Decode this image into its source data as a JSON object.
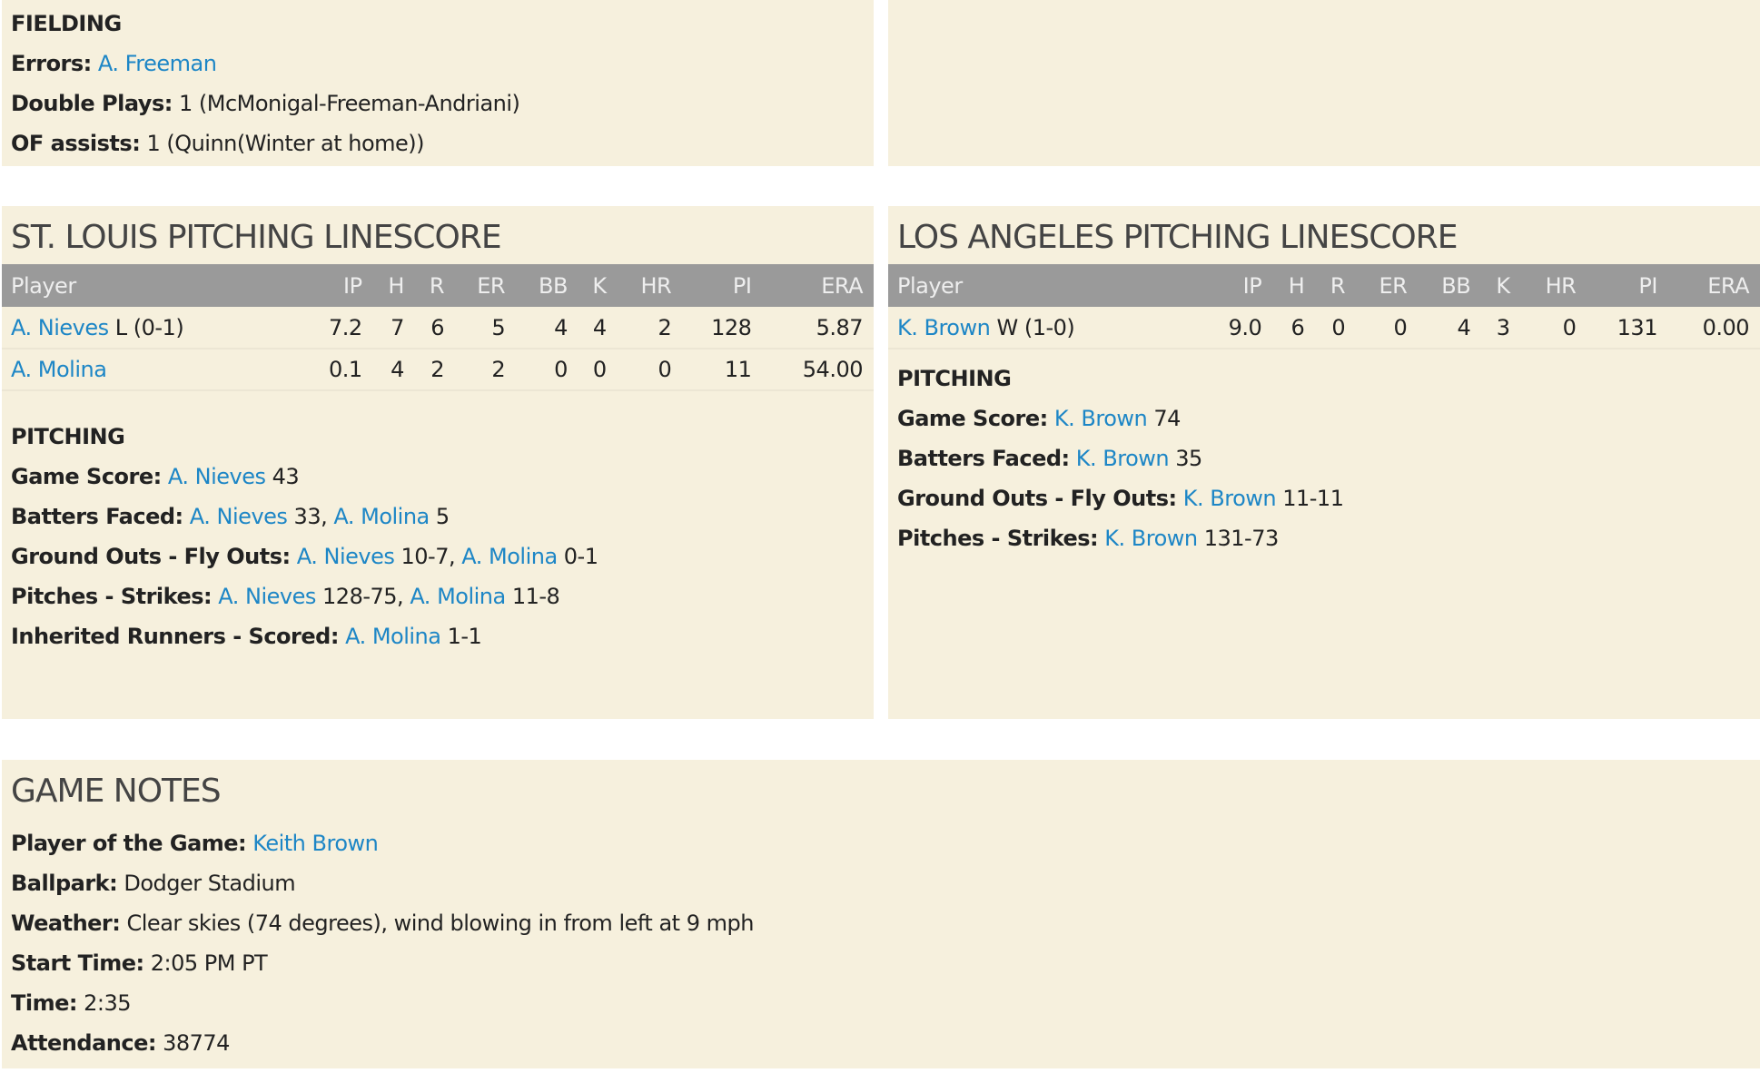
{
  "fielding": {
    "heading": "FIELDING",
    "lines": [
      {
        "label": "Errors:",
        "parts": [
          {
            "t": "A. Freeman",
            "link": true
          }
        ]
      },
      {
        "label": "Double Plays:",
        "parts": [
          {
            "t": "1 (McMonigal-Freeman-Andriani)"
          }
        ]
      },
      {
        "label": "OF assists:",
        "parts": [
          {
            "t": "1 (Quinn(Winter at home))"
          }
        ]
      }
    ]
  },
  "columns": [
    "Player",
    "IP",
    "H",
    "R",
    "ER",
    "BB",
    "K",
    "HR",
    "PI",
    "ERA"
  ],
  "stl": {
    "title": "ST. LOUIS PITCHING LINESCORE",
    "rows": [
      {
        "name": "A. Nieves",
        "dec": "L (0-1)",
        "stats": [
          "7.2",
          "7",
          "6",
          "5",
          "4",
          "4",
          "2",
          "128",
          "5.87"
        ]
      },
      {
        "name": "A. Molina",
        "dec": "",
        "stats": [
          "0.1",
          "4",
          "2",
          "2",
          "0",
          "0",
          "0",
          "11",
          "54.00"
        ]
      }
    ],
    "heading": "PITCHING",
    "lines": [
      {
        "label": "Game Score:",
        "parts": [
          {
            "t": "A. Nieves",
            "link": true
          },
          {
            "t": " 43"
          }
        ]
      },
      {
        "label": "Batters Faced:",
        "parts": [
          {
            "t": "A. Nieves",
            "link": true
          },
          {
            "t": " 33, "
          },
          {
            "t": "A. Molina",
            "link": true
          },
          {
            "t": " 5"
          }
        ]
      },
      {
        "label": "Ground Outs - Fly Outs:",
        "parts": [
          {
            "t": "A. Nieves",
            "link": true
          },
          {
            "t": " 10-7, "
          },
          {
            "t": "A. Molina",
            "link": true
          },
          {
            "t": " 0-1"
          }
        ]
      },
      {
        "label": "Pitches - Strikes:",
        "parts": [
          {
            "t": "A. Nieves",
            "link": true
          },
          {
            "t": " 128-75, "
          },
          {
            "t": "A. Molina",
            "link": true
          },
          {
            "t": " 11-8"
          }
        ]
      },
      {
        "label": "Inherited Runners - Scored:",
        "parts": [
          {
            "t": "A. Molina",
            "link": true
          },
          {
            "t": " 1-1"
          }
        ]
      }
    ]
  },
  "la": {
    "title": "LOS ANGELES PITCHING LINESCORE",
    "rows": [
      {
        "name": "K. Brown",
        "dec": "W (1-0)",
        "stats": [
          "9.0",
          "6",
          "0",
          "0",
          "4",
          "3",
          "0",
          "131",
          "0.00"
        ]
      }
    ],
    "heading": "PITCHING",
    "lines": [
      {
        "label": "Game Score:",
        "parts": [
          {
            "t": "K. Brown",
            "link": true
          },
          {
            "t": " 74"
          }
        ]
      },
      {
        "label": "Batters Faced:",
        "parts": [
          {
            "t": "K. Brown",
            "link": true
          },
          {
            "t": " 35"
          }
        ]
      },
      {
        "label": "Ground Outs - Fly Outs:",
        "parts": [
          {
            "t": "K. Brown",
            "link": true
          },
          {
            "t": " 11-11"
          }
        ]
      },
      {
        "label": "Pitches - Strikes:",
        "parts": [
          {
            "t": "K. Brown",
            "link": true
          },
          {
            "t": " 131-73"
          }
        ]
      }
    ]
  },
  "notes": {
    "title": "GAME NOTES",
    "lines": [
      {
        "label": "Player of the Game:",
        "parts": [
          {
            "t": "Keith Brown",
            "link": true
          }
        ]
      },
      {
        "label": "Ballpark:",
        "parts": [
          {
            "t": "Dodger Stadium"
          }
        ]
      },
      {
        "label": "Weather:",
        "parts": [
          {
            "t": "Clear skies (74 degrees), wind blowing in from left at 9 mph"
          }
        ]
      },
      {
        "label": "Start Time:",
        "parts": [
          {
            "t": "2:05 PM PT"
          }
        ]
      },
      {
        "label": "Time:",
        "parts": [
          {
            "t": "2:35"
          }
        ]
      },
      {
        "label": "Attendance:",
        "parts": [
          {
            "t": "38774"
          }
        ]
      }
    ]
  }
}
